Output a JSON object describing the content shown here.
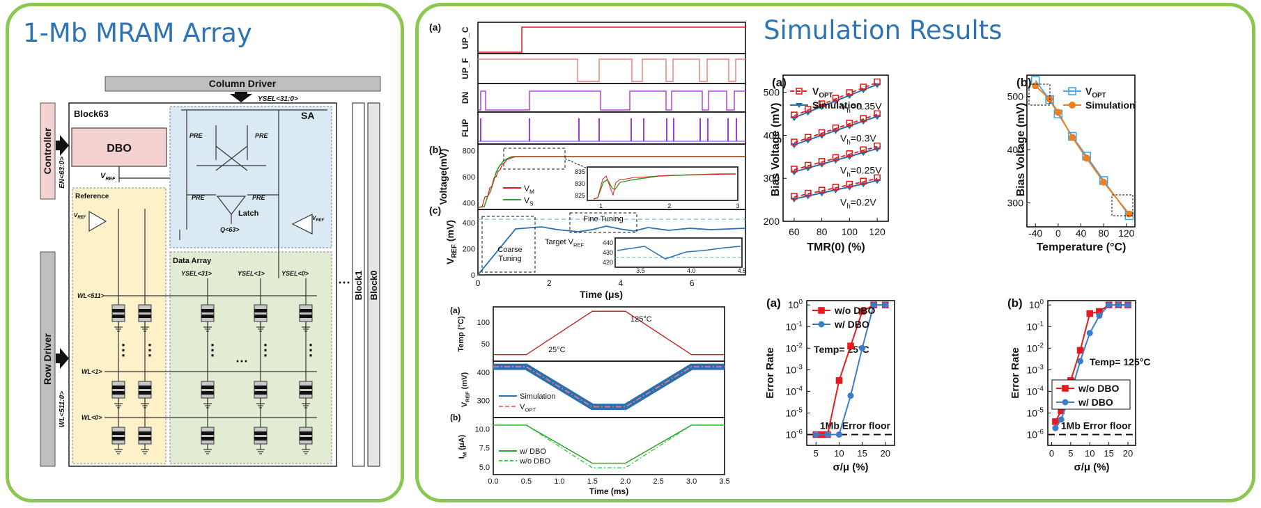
{
  "left": {
    "title": "1-Mb MRAM Array",
    "column_driver": "Column Driver",
    "ysel_bus": "YSEL<31:0>",
    "block_name": "Block63",
    "controller": "Controller",
    "en_bus": "EN<63:0>",
    "dbo": "DBO",
    "vref": "V",
    "vref_sub": "REF",
    "sa": "SA",
    "pre": "PRE",
    "latch": "Latch",
    "q_out": "Q<63>",
    "reference": "Reference",
    "data_array": "Data Array",
    "ysel_labels": [
      "YSEL<31>",
      "YSEL<1>",
      "YSEL<0>"
    ],
    "wl_labels": [
      "WL<511>",
      "WL<1>",
      "WL<0>"
    ],
    "row_driver": "Row Driver",
    "wl_bus": "WL<511:0>",
    "block1": "Block1",
    "block0": "Block0"
  },
  "right": {
    "title": "Simulation Results"
  },
  "colors": {
    "green_border": "#8cc751",
    "title_blue": "#2e74b5",
    "red": "#e41a1c",
    "blue": "#2a6fb0"
  },
  "chart_data": [
    {
      "id": "waveforms",
      "type": "line",
      "panel_labels": [
        "(a)",
        "(b)",
        "(c)"
      ],
      "signals": [
        "UP_C",
        "UP_F",
        "DN",
        "FLIP"
      ],
      "xlabel": "Time (μs)",
      "x_ticks": [
        0,
        2,
        4,
        6
      ],
      "voltage_ylabel": "Voltage(mV)",
      "voltage_ticks": [
        400,
        600,
        800
      ],
      "vref_ylabel": "V",
      "vref_ylabel_sub": "REF",
      "vref_ylabel_unit": "(mV)",
      "vref_ticks": [
        0,
        200,
        400
      ],
      "legend": [
        {
          "name": "V",
          "sub": "M"
        },
        {
          "name": "V",
          "sub": "S"
        }
      ],
      "inset1": {
        "x_ticks": [
          1,
          2,
          3
        ],
        "y_ticks": [
          825,
          830,
          835
        ]
      },
      "inset2": {
        "x_ticks": [
          3.5,
          4.0,
          4.5
        ],
        "y_ticks": [
          420,
          430,
          440
        ]
      },
      "annotations": [
        "Coarse",
        "Tuning",
        "Fine Tuning",
        "Target V",
        "REF"
      ]
    },
    {
      "id": "temperature",
      "type": "line",
      "panel_labels": [
        "(a)",
        "(b)"
      ],
      "xlabel": "Time (ms)",
      "x": [
        0.0,
        0.5,
        1.0,
        1.5,
        2.0,
        2.5,
        3.0,
        3.5
      ],
      "x_ticks": [
        "0.0",
        "0.5",
        "1.0",
        "1.5",
        "2.0",
        "2.5",
        "3.0",
        "3.5"
      ],
      "temp": {
        "ylabel": "Temp (°C)",
        "ticks": [
          50,
          100
        ],
        "x": [
          0,
          0.5,
          1.5,
          2.0,
          3.0,
          3.5
        ],
        "values": [
          25,
          25,
          125,
          125,
          25,
          25
        ],
        "labels": [
          "25°C",
          "125°C"
        ]
      },
      "vref": {
        "ylabel": "V",
        "ylabel_sub": "REF",
        "ylabel_unit": "(mV)",
        "ticks": [
          300,
          400
        ],
        "series": [
          {
            "name": "Simulation"
          },
          {
            "name": "V",
            "sub": "OPT"
          }
        ]
      },
      "im": {
        "ylabel": "I",
        "ylabel_sub": "M",
        "ylabel_unit": "(μA)",
        "ticks": [
          "5.0",
          "7.5",
          "10.0"
        ],
        "series": [
          {
            "name": "w/ DBO"
          },
          {
            "name": "w/o DBO"
          }
        ]
      }
    },
    {
      "id": "bias-vs-tmr",
      "type": "line",
      "panel_label": "(a)",
      "xlabel": "TMR(0) (%)",
      "ylabel": "Bias Voltage (mV)",
      "x": [
        60,
        70,
        80,
        90,
        100,
        110,
        120
      ],
      "xlim": [
        52,
        128
      ],
      "ylim": [
        200,
        540
      ],
      "x_ticks": [
        60,
        80,
        100,
        120
      ],
      "y_ticks": [
        200,
        300,
        400,
        500
      ],
      "legend": [
        {
          "name": "V",
          "sub": "OPT"
        },
        {
          "name": "Simulation"
        }
      ],
      "groups": [
        {
          "label": "V",
          "label_sub": "h",
          "label_value": "=0.35V",
          "values": [
            441,
            454,
            467,
            480,
            493,
            506,
            518
          ]
        },
        {
          "label": "V",
          "label_sub": "h",
          "label_value": "=0.3V",
          "values": [
            378,
            389,
            400,
            411,
            422,
            433,
            444
          ]
        },
        {
          "label": "V",
          "label_sub": "h",
          "label_value": "=0.25V",
          "values": [
            315,
            324,
            333,
            342,
            351,
            360,
            369
          ]
        },
        {
          "label": "V",
          "label_sub": "h",
          "label_value": "=0.2V",
          "values": [
            252,
            259,
            266,
            273,
            280,
            287,
            295
          ]
        }
      ]
    },
    {
      "id": "bias-vs-temp",
      "type": "line",
      "panel_label": "(b)",
      "xlabel": "Temperature (°C)",
      "ylabel": "Bias Voltage (mV)",
      "xlim": [
        -55,
        135
      ],
      "ylim": [
        255,
        540
      ],
      "x_ticks": [
        -40,
        0,
        40,
        80,
        120
      ],
      "y_ticks": [
        300,
        400,
        500
      ],
      "legend": [
        {
          "name": "V",
          "sub": "OPT"
        },
        {
          "name": "Simulation"
        }
      ],
      "series": [
        {
          "name": "VOPT",
          "x": [
            -40,
            -15,
            0,
            25,
            50,
            80,
            125
          ],
          "values": [
            530,
            494,
            467,
            425,
            388,
            342,
            276
          ]
        },
        {
          "name": "Simulation",
          "x": [
            -40,
            -15,
            0,
            25,
            50,
            80,
            125
          ],
          "values": [
            520,
            495,
            470,
            423,
            384,
            339,
            279
          ]
        }
      ]
    },
    {
      "id": "error-25c",
      "type": "line",
      "panel_label": "(a)",
      "xlabel": "σ/μ (%)",
      "ylabel": "Error Rate",
      "y_scale": "log",
      "xlim": [
        3,
        22
      ],
      "ylim_exp": [
        -6.5,
        0.2
      ],
      "x_ticks": [
        5,
        10,
        15,
        20
      ],
      "y_ticks_exp": [
        0,
        -1,
        -2,
        -3,
        -4,
        -5,
        -6
      ],
      "annotation": "Temp= 25°C",
      "floor_label": "1Mb Error floor",
      "series": [
        {
          "name": "w/o DBO",
          "x": [
            5,
            6.25,
            7.5,
            10,
            12.5,
            15,
            17.5,
            20
          ],
          "exp": [
            -6,
            -6,
            -6,
            -3.5,
            -1.9,
            -0.3,
            0,
            0
          ]
        },
        {
          "name": "w/ DBO",
          "x": [
            5,
            7.5,
            10,
            12.5,
            15,
            17.5,
            20
          ],
          "exp": [
            -6,
            -6,
            -6,
            -4.2,
            -2.0,
            0,
            0
          ]
        }
      ]
    },
    {
      "id": "error-125c",
      "type": "line",
      "panel_label": "(b)",
      "xlabel": "σ/μ (%)",
      "ylabel": "Error Rate",
      "y_scale": "log",
      "xlim": [
        -1,
        22
      ],
      "ylim_exp": [
        -6.5,
        0.2
      ],
      "x_ticks": [
        0,
        5,
        10,
        15,
        20
      ],
      "y_ticks_exp": [
        0,
        -1,
        -2,
        -3,
        -4,
        -5,
        -6
      ],
      "annotation": "Temp= 125°C",
      "floor_label": "1Mb Error floor",
      "series": [
        {
          "name": "w/o DBO",
          "x": [
            1,
            2.5,
            5,
            7.5,
            10,
            12.5,
            15,
            17.5,
            20
          ],
          "exp": [
            -5.4,
            -4.9,
            -3.5,
            -2.1,
            -0.4,
            -0.3,
            0,
            0,
            0
          ]
        },
        {
          "name": "w/ DBO",
          "x": [
            1,
            2.5,
            5,
            7.5,
            10,
            12.5,
            15,
            17.5,
            20
          ],
          "exp": [
            -5.7,
            -5.3,
            -4.1,
            -2.6,
            -1.3,
            -0.5,
            0,
            0,
            0
          ]
        }
      ]
    }
  ]
}
